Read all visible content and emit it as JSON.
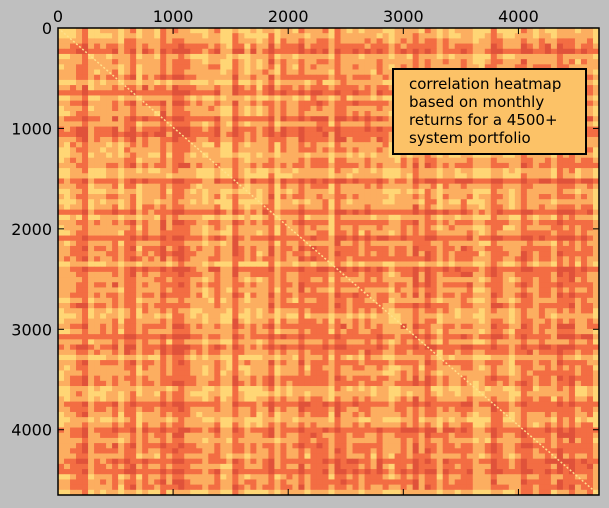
{
  "chart_data": {
    "type": "heatmap",
    "title": "",
    "xlabel": "",
    "ylabel": "",
    "x_axis_position": "top",
    "y_axis_inverted": true,
    "xlim": [
      0,
      4700
    ],
    "ylim": [
      0,
      4650
    ],
    "x_ticks": [
      0,
      1000,
      2000,
      3000,
      4000
    ],
    "x_tick_labels": [
      "0",
      "1000",
      "2000",
      "3000",
      "4000"
    ],
    "y_ticks": [
      0,
      1000,
      2000,
      3000,
      4000
    ],
    "y_tick_labels": [
      "0",
      "1000",
      "2000",
      "3000",
      "4000"
    ],
    "colormap": [
      "#ffd675",
      "#fcae60",
      "#f36d43",
      "#e0523a"
    ],
    "background_color": "#bfbfbf",
    "diagonal_color": "#ffe08a",
    "annotation": {
      "lines": [
        "correlation heatmap",
        "based on monthly",
        "returns for a 4500+",
        "system portfolio"
      ],
      "placement": "top-right",
      "box_color": "#fcc267"
    },
    "grid": false,
    "legend": "none"
  }
}
